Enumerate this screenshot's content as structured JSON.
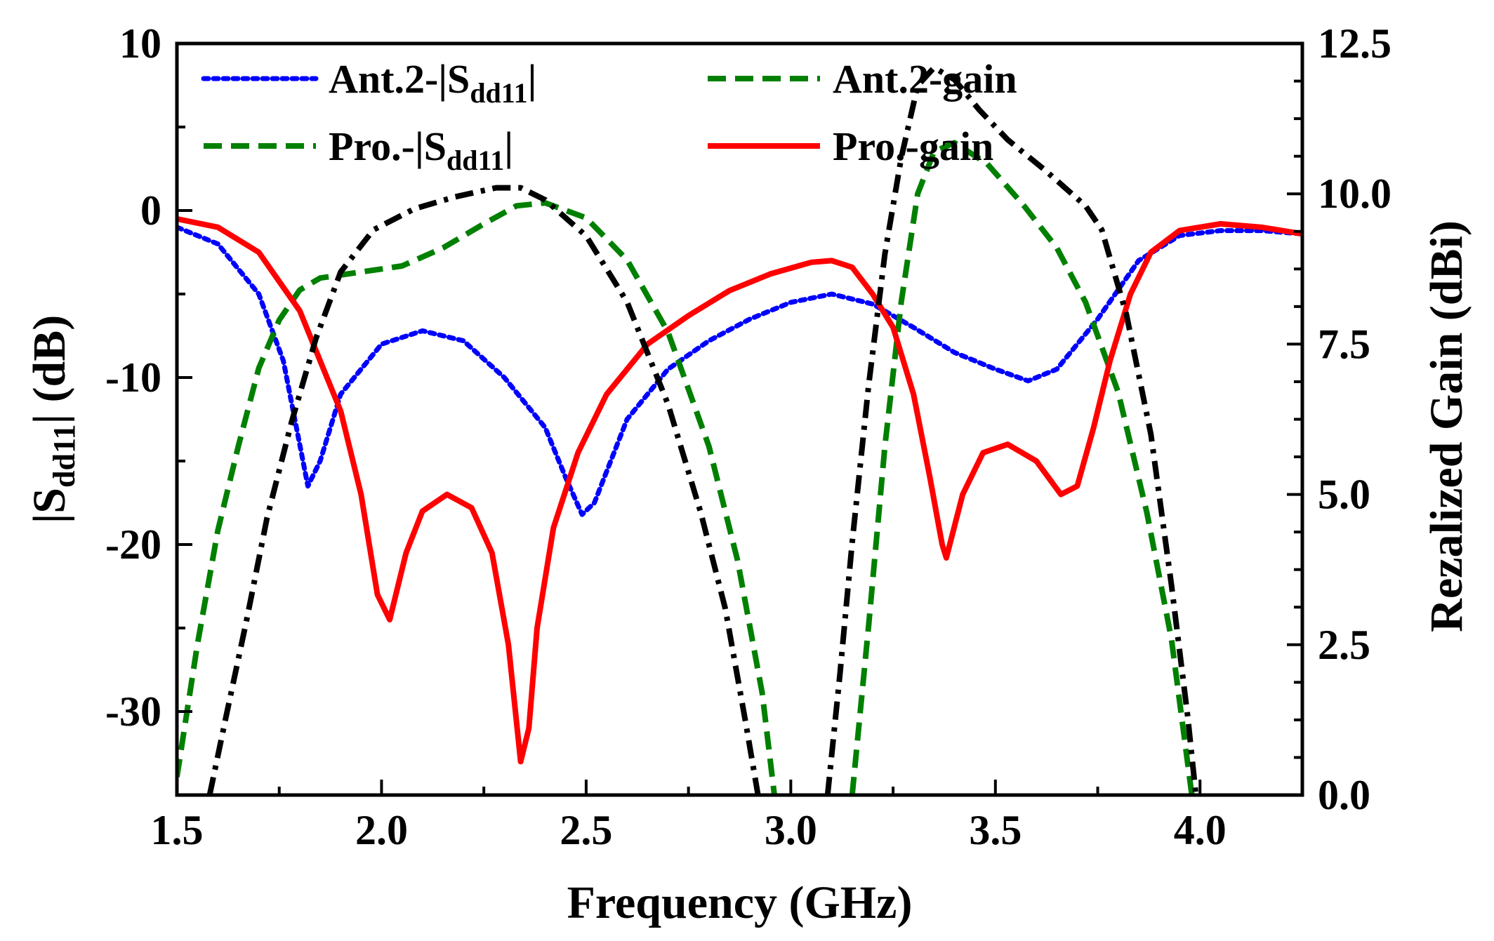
{
  "chart_data": {
    "type": "line",
    "xlabel": "Frequency (GHz)",
    "ylabel_left": "|S",
    "ylabel_left_sub": "dd11",
    "ylabel_left_suffix": "| (dB)",
    "ylabel_right": "Rezalized Gain (dBi)",
    "xlim": [
      1.5,
      4.25
    ],
    "ylim_left": [
      -35,
      10
    ],
    "ylim_right": [
      0,
      12.5
    ],
    "x_ticks": [
      "1.5",
      "2.0",
      "2.5",
      "3.0",
      "3.5",
      "4.0"
    ],
    "y_left_ticks": [
      "10",
      "0",
      "-10",
      "-20",
      "-30"
    ],
    "y_right_ticks": [
      "12.5",
      "10.0",
      "7.5",
      "5.0",
      "2.5",
      "0.0"
    ],
    "legend": {
      "placement": "top-left",
      "entries": [
        {
          "text": "Ant.2-|S",
          "sub": "dd11",
          "suffix": "|",
          "series": 0
        },
        {
          "text": "Ant.2-gain",
          "sub": "",
          "suffix": "",
          "series": 1
        },
        {
          "text": "Pro.-|S",
          "sub": "dd11",
          "suffix": "|",
          "series": 2
        },
        {
          "text": "Pro.-gain",
          "sub": "",
          "suffix": "",
          "series": 3
        }
      ]
    },
    "series": [
      {
        "name": "Ant.2-|Sdd11|",
        "axis": "left",
        "color": "#0000ff",
        "style": "dotted",
        "points": [
          [
            1.5,
            -1
          ],
          [
            1.6,
            -2
          ],
          [
            1.7,
            -5
          ],
          [
            1.76,
            -9
          ],
          [
            1.8,
            -14
          ],
          [
            1.82,
            -16.5
          ],
          [
            1.85,
            -15
          ],
          [
            1.9,
            -11
          ],
          [
            2.0,
            -8
          ],
          [
            2.1,
            -7.2
          ],
          [
            2.2,
            -7.8
          ],
          [
            2.3,
            -10
          ],
          [
            2.4,
            -13
          ],
          [
            2.45,
            -16
          ],
          [
            2.49,
            -18.2
          ],
          [
            2.52,
            -17.5
          ],
          [
            2.6,
            -12.5
          ],
          [
            2.7,
            -9.5
          ],
          [
            2.8,
            -7.8
          ],
          [
            2.9,
            -6.5
          ],
          [
            3.0,
            -5.5
          ],
          [
            3.1,
            -5
          ],
          [
            3.2,
            -5.6
          ],
          [
            3.3,
            -7
          ],
          [
            3.4,
            -8.5
          ],
          [
            3.5,
            -9.5
          ],
          [
            3.58,
            -10.2
          ],
          [
            3.65,
            -9.5
          ],
          [
            3.75,
            -6.5
          ],
          [
            3.85,
            -3
          ],
          [
            3.95,
            -1.5
          ],
          [
            4.05,
            -1.2
          ],
          [
            4.15,
            -1.2
          ],
          [
            4.25,
            -1.4
          ]
        ]
      },
      {
        "name": "Ant.2-gain",
        "axis": "right",
        "color": "#008000",
        "style": "dashed",
        "points": [
          [
            1.5,
            0.3
          ],
          [
            1.55,
            2.5
          ],
          [
            1.6,
            4.4
          ],
          [
            1.65,
            5.8
          ],
          [
            1.7,
            7.1
          ],
          [
            1.75,
            7.9
          ],
          [
            1.8,
            8.4
          ],
          [
            1.85,
            8.6
          ],
          [
            1.95,
            8.7
          ],
          [
            2.05,
            8.8
          ],
          [
            2.15,
            9.1
          ],
          [
            2.25,
            9.5
          ],
          [
            2.33,
            9.8
          ],
          [
            2.4,
            9.85
          ],
          [
            2.5,
            9.6
          ],
          [
            2.6,
            8.9
          ],
          [
            2.7,
            7.7
          ],
          [
            2.8,
            5.8
          ],
          [
            2.87,
            3.9
          ],
          [
            2.93,
            1.7
          ],
          [
            2.96,
            0.0
          ]
        ]
      },
      {
        "name": "Ant.2-gain-b",
        "axis": "right",
        "color": "#008000",
        "style": "dashed",
        "points": [
          [
            3.15,
            0.0
          ],
          [
            3.19,
            2.8
          ],
          [
            3.23,
            5.8
          ],
          [
            3.27,
            8.2
          ],
          [
            3.31,
            10.0
          ],
          [
            3.35,
            10.7
          ],
          [
            3.4,
            10.85
          ],
          [
            3.48,
            10.5
          ],
          [
            3.57,
            9.8
          ],
          [
            3.65,
            9.1
          ],
          [
            3.72,
            8.2
          ],
          [
            3.8,
            6.7
          ],
          [
            3.87,
            4.7
          ],
          [
            3.93,
            2.6
          ],
          [
            3.98,
            0.0
          ]
        ]
      },
      {
        "name": "Pro.-|Sdd11|",
        "axis": "left",
        "color": "#ff0000",
        "style": "solid",
        "points": [
          [
            1.5,
            -0.5
          ],
          [
            1.6,
            -1
          ],
          [
            1.7,
            -2.5
          ],
          [
            1.8,
            -6
          ],
          [
            1.85,
            -9
          ],
          [
            1.9,
            -12
          ],
          [
            1.95,
            -17
          ],
          [
            1.99,
            -23
          ],
          [
            2.02,
            -24.5
          ],
          [
            2.06,
            -20.5
          ],
          [
            2.1,
            -18
          ],
          [
            2.16,
            -17
          ],
          [
            2.22,
            -17.8
          ],
          [
            2.27,
            -20.5
          ],
          [
            2.31,
            -26
          ],
          [
            2.34,
            -33
          ],
          [
            2.36,
            -31
          ],
          [
            2.38,
            -25
          ],
          [
            2.42,
            -19
          ],
          [
            2.48,
            -14.5
          ],
          [
            2.55,
            -11
          ],
          [
            2.65,
            -8
          ],
          [
            2.75,
            -6.3
          ],
          [
            2.85,
            -4.8
          ],
          [
            2.95,
            -3.8
          ],
          [
            3.05,
            -3.1
          ],
          [
            3.1,
            -3
          ],
          [
            3.15,
            -3.4
          ],
          [
            3.2,
            -5
          ],
          [
            3.25,
            -7
          ],
          [
            3.3,
            -11
          ],
          [
            3.34,
            -16
          ],
          [
            3.37,
            -20
          ],
          [
            3.38,
            -20.8
          ],
          [
            3.42,
            -17
          ],
          [
            3.47,
            -14.5
          ],
          [
            3.53,
            -14
          ],
          [
            3.6,
            -15
          ],
          [
            3.66,
            -17
          ],
          [
            3.7,
            -16.5
          ],
          [
            3.74,
            -13
          ],
          [
            3.78,
            -9
          ],
          [
            3.83,
            -5
          ],
          [
            3.88,
            -2.5
          ],
          [
            3.95,
            -1.2
          ],
          [
            4.05,
            -0.8
          ],
          [
            4.15,
            -1
          ],
          [
            4.25,
            -1.4
          ]
        ]
      },
      {
        "name": "Pro.-gain",
        "axis": "right",
        "color": "#000000",
        "style": "dashdot",
        "points": [
          [
            1.58,
            0.0
          ],
          [
            1.62,
            1.3
          ],
          [
            1.67,
            2.9
          ],
          [
            1.72,
            4.6
          ],
          [
            1.78,
            6.2
          ],
          [
            1.84,
            7.6
          ],
          [
            1.9,
            8.7
          ],
          [
            1.98,
            9.4
          ],
          [
            2.08,
            9.75
          ],
          [
            2.18,
            9.95
          ],
          [
            2.28,
            10.1
          ],
          [
            2.34,
            10.1
          ],
          [
            2.4,
            9.9
          ],
          [
            2.5,
            9.3
          ],
          [
            2.6,
            8.2
          ],
          [
            2.7,
            6.5
          ],
          [
            2.78,
            4.7
          ],
          [
            2.84,
            3.1
          ],
          [
            2.89,
            1.2
          ],
          [
            2.92,
            0.0
          ]
        ]
      },
      {
        "name": "Pro.-gain-b",
        "axis": "right",
        "color": "#000000",
        "style": "dashdot",
        "points": [
          [
            3.09,
            0.0
          ],
          [
            3.12,
            2.0
          ],
          [
            3.15,
            4.2
          ],
          [
            3.19,
            6.8
          ],
          [
            3.23,
            9.0
          ],
          [
            3.27,
            10.6
          ],
          [
            3.31,
            11.8
          ],
          [
            3.35,
            12.1
          ],
          [
            3.4,
            11.9
          ],
          [
            3.46,
            11.4
          ],
          [
            3.53,
            10.9
          ],
          [
            3.62,
            10.4
          ],
          [
            3.72,
            9.8
          ],
          [
            3.76,
            9.4
          ],
          [
            3.82,
            8.0
          ],
          [
            3.88,
            6.0
          ],
          [
            3.93,
            3.5
          ],
          [
            3.97,
            1.3
          ],
          [
            3.99,
            0.0
          ]
        ]
      }
    ]
  }
}
